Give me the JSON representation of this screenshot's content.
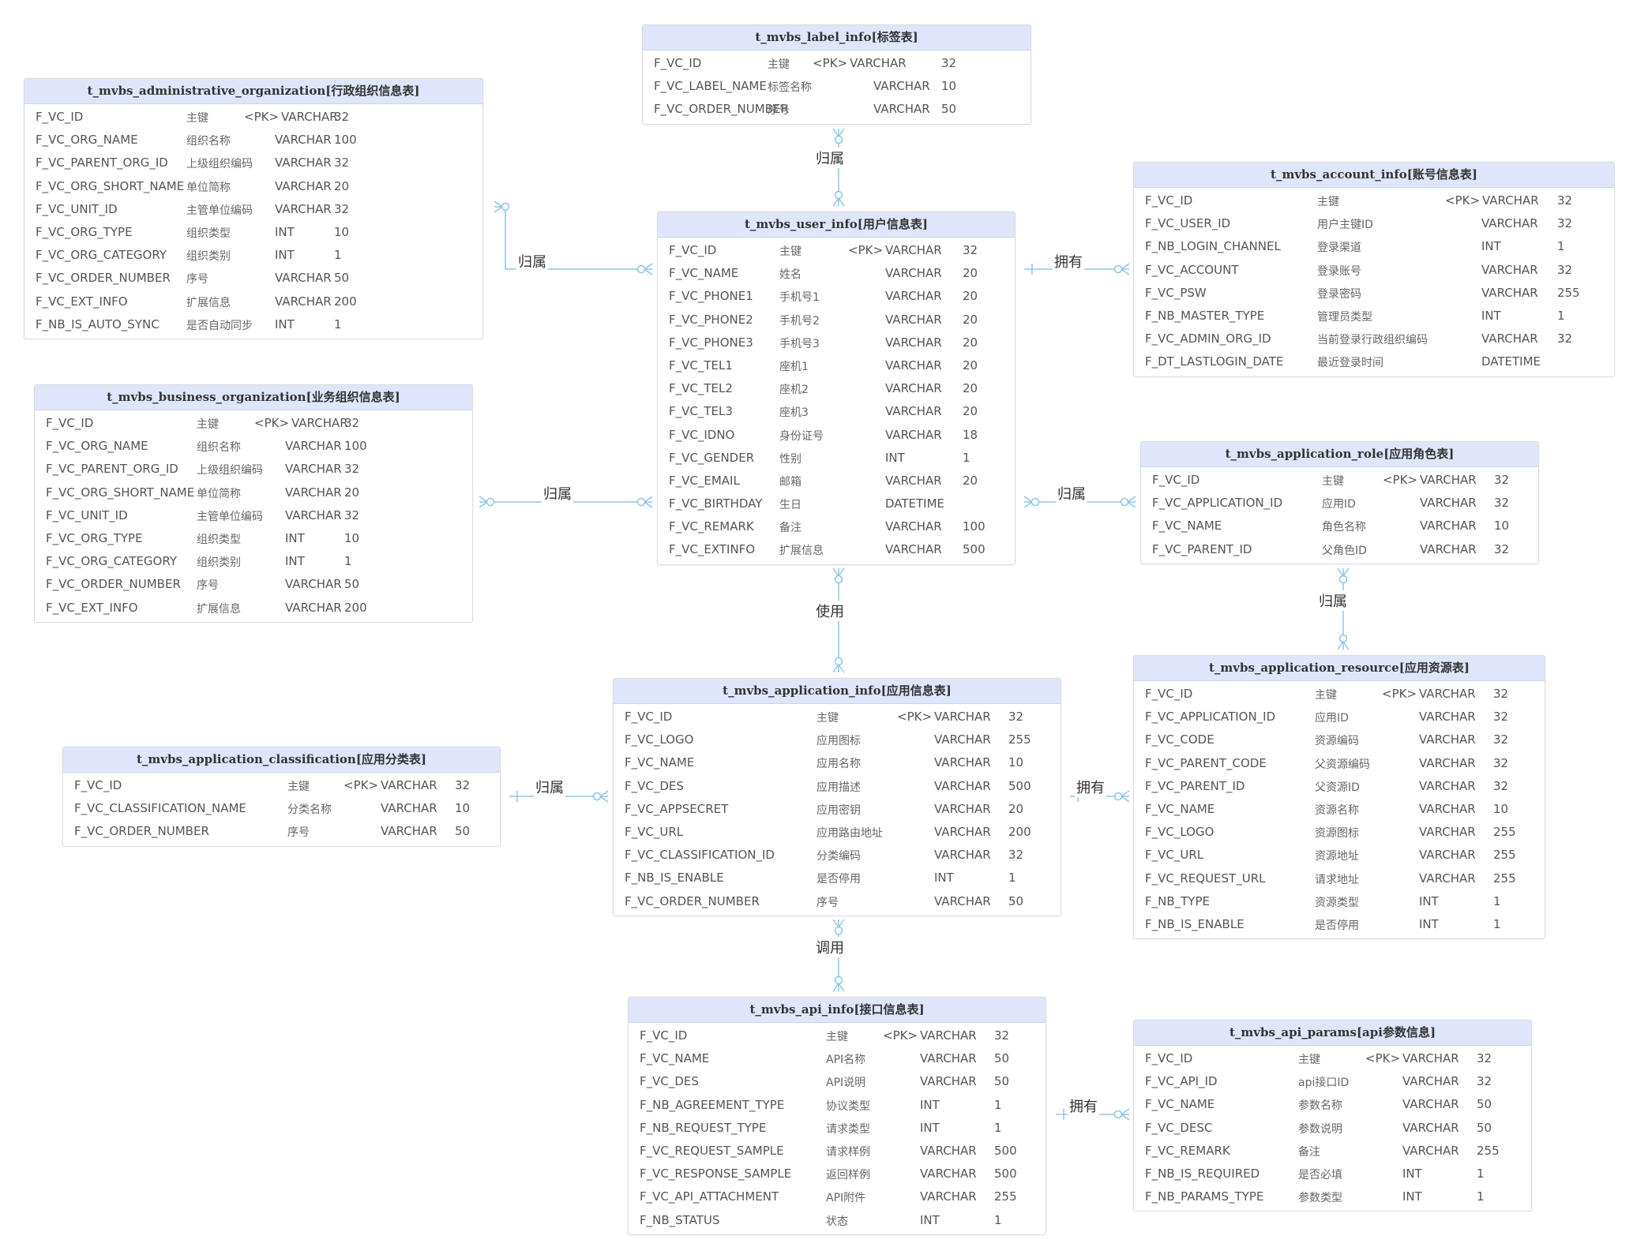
{
  "entities": [
    {
      "id": "label",
      "title": "t_mvbs_label_info[标签表]",
      "cols": [
        158,
        215,
        292,
        378
      ],
      "rows": [
        [
          "F_VC_ID",
          "主键",
          "<PK>",
          "VARCHAR",
          "32"
        ],
        [
          "F_VC_LABEL_NAME",
          "标签名称",
          "",
          "VARCHAR",
          "10"
        ],
        [
          "F_VC_ORDER_NUMBER",
          "序号",
          "",
          "VARCHAR",
          "50"
        ]
      ]
    },
    {
      "id": "admin",
      "title": "t_mvbs_administrative_organization[行政组织信息表]",
      "cols": [
        205,
        278,
        317,
        392
      ],
      "rows": [
        [
          "F_VC_ID",
          "主键",
          "<PK>",
          "VARCHAR",
          "32"
        ],
        [
          "F_VC_ORG_NAME",
          "组织名称",
          "",
          "VARCHAR",
          "100"
        ],
        [
          "F_VC_PARENT_ORG_ID",
          "上级组织编码",
          "",
          "VARCHAR",
          "32"
        ],
        [
          "F_VC_ORG_SHORT_NAME",
          "单位简称",
          "",
          "VARCHAR",
          "20"
        ],
        [
          "F_VC_UNIT_ID",
          "主管单位编码",
          "",
          "VARCHAR",
          "32"
        ],
        [
          "F_VC_ORG_TYPE",
          "组织类型",
          "",
          "INT",
          "10"
        ],
        [
          "F_VC_ORG_CATEGORY",
          "组织类别",
          "",
          "INT",
          "1"
        ],
        [
          "F_VC_ORDER_NUMBER",
          "序号",
          "",
          "VARCHAR",
          "50"
        ],
        [
          "F_VC_EXT_INFO",
          "扩展信息",
          "",
          "VARCHAR",
          "200"
        ],
        [
          "F_NB_IS_AUTO_SYNC",
          "是否自动同步",
          "",
          "INT",
          "1"
        ]
      ]
    },
    {
      "id": "user",
      "title": "t_mvbs_user_info[用户信息表]",
      "cols": [
        154,
        241,
        288,
        386
      ],
      "rows": [
        [
          "F_VC_ID",
          "主键",
          "<PK>",
          "VARCHAR",
          "32"
        ],
        [
          "F_VC_NAME",
          "姓名",
          "",
          "VARCHAR",
          "20"
        ],
        [
          "F_VC_PHONE1",
          "手机号1",
          "",
          "VARCHAR",
          "20"
        ],
        [
          "F_VC_PHONE2",
          "手机号2",
          "",
          "VARCHAR",
          "20"
        ],
        [
          "F_VC_PHONE3",
          "手机号3",
          "",
          "VARCHAR",
          "20"
        ],
        [
          "F_VC_TEL1",
          "座机1",
          "",
          "VARCHAR",
          "20"
        ],
        [
          "F_VC_TEL2",
          "座机2",
          "",
          "VARCHAR",
          "20"
        ],
        [
          "F_VC_TEL3",
          "座机3",
          "",
          "VARCHAR",
          "20"
        ],
        [
          "F_VC_IDNO",
          "身份证号",
          "",
          "VARCHAR",
          "18"
        ],
        [
          "F_VC_GENDER",
          "性别",
          "",
          "INT",
          "1"
        ],
        [
          "F_VC_EMAIL",
          "邮箱",
          "",
          "VARCHAR",
          "20"
        ],
        [
          "F_VC_BIRTHDAY",
          "生日",
          "",
          "DATETIME",
          ""
        ],
        [
          "F_VC_REMARK",
          "备注",
          "",
          "VARCHAR",
          "100"
        ],
        [
          "F_VC_EXTINFO",
          "扩展信息",
          "",
          "VARCHAR",
          "500"
        ]
      ]
    },
    {
      "id": "account",
      "title": "t_mvbs_account_info[账号信息表]",
      "cols": [
        232,
        394,
        440,
        536
      ],
      "rows": [
        [
          "F_VC_ID",
          "主键",
          "<PK>",
          "VARCHAR",
          "32"
        ],
        [
          "F_VC_USER_ID",
          "用户主键ID",
          "",
          "VARCHAR",
          "32"
        ],
        [
          "F_NB_LOGIN_CHANNEL",
          "登录渠道",
          "",
          "INT",
          "1"
        ],
        [
          "F_VC_ACCOUNT",
          "登录账号",
          "",
          "VARCHAR",
          "32"
        ],
        [
          "F_VC_PSW",
          "登录密码",
          "",
          "VARCHAR",
          "255"
        ],
        [
          "F_NB_MASTER_TYPE",
          "管理员类型",
          "",
          "INT",
          "1"
        ],
        [
          "F_VC_ADMIN_ORG_ID",
          "当前登录行政组织编码",
          "",
          "VARCHAR",
          "32"
        ],
        [
          "F_DT_LASTLOGIN_DATE",
          "最近登录时间",
          "",
          "DATETIME",
          ""
        ]
      ]
    },
    {
      "id": "business",
      "title": "t_mvbs_business_organization[业务组织信息表]",
      "cols": [
        205,
        278,
        317,
        392
      ],
      "rows": [
        [
          "F_VC_ID",
          "主键",
          "<PK>",
          "VARCHAR",
          "32"
        ],
        [
          "F_VC_ORG_NAME",
          "组织名称",
          "",
          "VARCHAR",
          "100"
        ],
        [
          "F_VC_PARENT_ORG_ID",
          "上级组织编码",
          "",
          "VARCHAR",
          "32"
        ],
        [
          "F_VC_ORG_SHORT_NAME",
          "单位简称",
          "",
          "VARCHAR",
          "20"
        ],
        [
          "F_VC_UNIT_ID",
          "主管单位编码",
          "",
          "VARCHAR",
          "32"
        ],
        [
          "F_VC_ORG_TYPE",
          "组织类型",
          "",
          "INT",
          "10"
        ],
        [
          "F_VC_ORG_CATEGORY",
          "组织类别",
          "",
          "INT",
          "1"
        ],
        [
          "F_VC_ORDER_NUMBER",
          "序号",
          "",
          "VARCHAR",
          "50"
        ],
        [
          "F_VC_EXT_INFO",
          "扩展信息",
          "",
          "VARCHAR",
          "200"
        ]
      ]
    },
    {
      "id": "role",
      "title": "t_mvbs_application_role[应用角色表]",
      "cols": [
        229,
        306,
        353,
        447
      ],
      "rows": [
        [
          "F_VC_ID",
          "主键",
          "<PK>",
          "VARCHAR",
          "32"
        ],
        [
          "F_VC_APPLICATION_ID",
          "应用ID",
          "",
          "VARCHAR",
          "32"
        ],
        [
          "F_VC_NAME",
          "角色名称",
          "",
          "VARCHAR",
          "10"
        ],
        [
          "F_VC_PARENT_ID",
          "父角色ID",
          "",
          "VARCHAR",
          "32"
        ]
      ]
    },
    {
      "id": "resource",
      "title": "t_mvbs_application_resource[应用资源表]",
      "cols": [
        229,
        314,
        361,
        455
      ],
      "rows": [
        [
          "F_VC_ID",
          "主键",
          "<PK>",
          "VARCHAR",
          "32"
        ],
        [
          "F_VC_APPLICATION_ID",
          "应用ID",
          "",
          "VARCHAR",
          "32"
        ],
        [
          "F_VC_CODE",
          "资源编码",
          "",
          "VARCHAR",
          "32"
        ],
        [
          "F_VC_PARENT_CODE",
          "父资源编码",
          "",
          "VARCHAR",
          "32"
        ],
        [
          "F_VC_PARENT_ID",
          "父资源ID",
          "",
          "VARCHAR",
          "32"
        ],
        [
          "F_VC_NAME",
          "资源名称",
          "",
          "VARCHAR",
          "10"
        ],
        [
          "F_VC_LOGO",
          "资源图标",
          "",
          "VARCHAR",
          "255"
        ],
        [
          "F_VC_URL",
          "资源地址",
          "",
          "VARCHAR",
          "255"
        ],
        [
          "F_VC_REQUEST_URL",
          "请求地址",
          "",
          "VARCHAR",
          "255"
        ],
        [
          "F_NB_TYPE",
          "资源类型",
          "",
          "INT",
          "1"
        ],
        [
          "F_NB_IS_ENABLE",
          "是否停用",
          "",
          "INT",
          "1"
        ]
      ]
    },
    {
      "id": "app",
      "title": "t_mvbs_application_info[应用信息表]",
      "cols": [
        257,
        359,
        406,
        500
      ],
      "rows": [
        [
          "F_VC_ID",
          "主键",
          "<PK>",
          "VARCHAR",
          "32"
        ],
        [
          "F_VC_LOGO",
          "应用图标",
          "",
          "VARCHAR",
          "255"
        ],
        [
          "F_VC_NAME",
          "应用名称",
          "",
          "VARCHAR",
          "10"
        ],
        [
          "F_VC_DES",
          "应用描述",
          "",
          "VARCHAR",
          "500"
        ],
        [
          "F_VC_APPSECRET",
          "应用密钥",
          "",
          "VARCHAR",
          "20"
        ],
        [
          "F_VC_URL",
          "应用路由地址",
          "",
          "VARCHAR",
          "200"
        ],
        [
          "F_VC_CLASSIFICATION_ID",
          "分类编码",
          "",
          "VARCHAR",
          "32"
        ],
        [
          "F_NB_IS_ENABLE",
          "是否停用",
          "",
          "INT",
          "1"
        ],
        [
          "F_VC_ORDER_NUMBER",
          "序号",
          "",
          "VARCHAR",
          "50"
        ]
      ]
    },
    {
      "id": "classification",
      "title": "t_mvbs_application_classification[应用分类表]",
      "cols": [
        284,
        355,
        402,
        496
      ],
      "rows": [
        [
          "F_VC_ID",
          "主键",
          "<PK>",
          "VARCHAR",
          "32"
        ],
        [
          "F_VC_CLASSIFICATION_NAME",
          "分类名称",
          "",
          "VARCHAR",
          "10"
        ],
        [
          "F_VC_ORDER_NUMBER",
          "序号",
          "",
          "VARCHAR",
          "50"
        ]
      ]
    },
    {
      "id": "api",
      "title": "t_mvbs_api_info[接口信息表]",
      "cols": [
        250,
        322,
        369,
        463
      ],
      "rows": [
        [
          "F_VC_ID",
          "主键",
          "<PK>",
          "VARCHAR",
          "32"
        ],
        [
          "F_VC_NAME",
          "API名称",
          "",
          "VARCHAR",
          "50"
        ],
        [
          "F_VC_DES",
          "API说明",
          "",
          "VARCHAR",
          "50"
        ],
        [
          "F_NB_AGREEMENT_TYPE",
          "协议类型",
          "",
          "INT",
          "1"
        ],
        [
          "F_NB_REQUEST_TYPE",
          "请求类型",
          "",
          "INT",
          "1"
        ],
        [
          "F_VC_REQUEST_SAMPLE",
          "请求样例",
          "",
          "VARCHAR",
          "500"
        ],
        [
          "F_VC_RESPONSE_SAMPLE",
          "返回样例",
          "",
          "VARCHAR",
          "500"
        ],
        [
          "F_VC_API_ATTACHMENT",
          "API附件",
          "",
          "VARCHAR",
          "255"
        ],
        [
          "F_NB_STATUS",
          "状态",
          "",
          "INT",
          "1"
        ]
      ]
    },
    {
      "id": "params",
      "title": "t_mvbs_api_params[api参数信息]",
      "cols": [
        208,
        293,
        340,
        434
      ],
      "rows": [
        [
          "F_VC_ID",
          "主键",
          "<PK>",
          "VARCHAR",
          "32"
        ],
        [
          "F_VC_API_ID",
          "api接口ID",
          "",
          "VARCHAR",
          "32"
        ],
        [
          "F_VC_NAME",
          "参数名称",
          "",
          "VARCHAR",
          "50"
        ],
        [
          "F_VC_DESC",
          "参数说明",
          "",
          "VARCHAR",
          "50"
        ],
        [
          "F_VC_REMARK",
          "备注",
          "",
          "VARCHAR",
          "255"
        ],
        [
          "F_NB_IS_REQUIRED",
          "是否必填",
          "",
          "INT",
          "1"
        ],
        [
          "F_NB_PARAMS_TYPE",
          "参数类型",
          "",
          "INT",
          "1"
        ]
      ]
    }
  ],
  "relations": [
    {
      "id": "label-user",
      "label": "归属"
    },
    {
      "id": "admin-user",
      "label": "归属"
    },
    {
      "id": "business-user",
      "label": "归属"
    },
    {
      "id": "user-account",
      "label": "拥有"
    },
    {
      "id": "user-role",
      "label": "归属"
    },
    {
      "id": "role-resource",
      "label": "归属"
    },
    {
      "id": "user-app",
      "label": "使用"
    },
    {
      "id": "classification-app",
      "label": "归属"
    },
    {
      "id": "app-resource",
      "label": "拥有"
    },
    {
      "id": "app-api",
      "label": "调用"
    },
    {
      "id": "api-params",
      "label": "拥有"
    }
  ],
  "colors": {
    "line": "#8ec5ec",
    "header": "#dfe6fb"
  }
}
